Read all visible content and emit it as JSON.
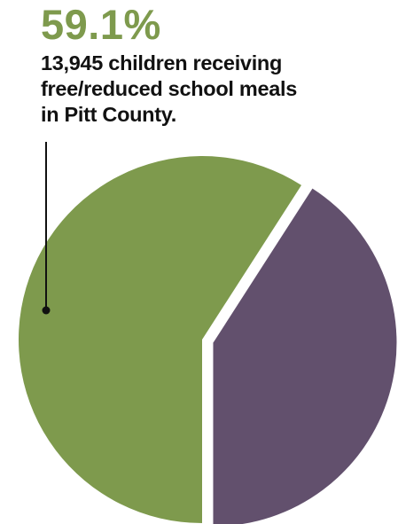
{
  "chart_data": {
    "type": "pie",
    "slices": [
      {
        "value": 59.1,
        "color": "#7e9a4d"
      },
      {
        "value": 40.9,
        "color": "#62506d"
      }
    ],
    "annotations": [
      {
        "percent_label": "59.1%",
        "lines": [
          "13,945 children receiving",
          "free/reduced school meals",
          "in Pitt County."
        ]
      }
    ]
  },
  "colors": {
    "green": "#7e9a4d",
    "purple": "#62506d",
    "leader": "#111111"
  }
}
